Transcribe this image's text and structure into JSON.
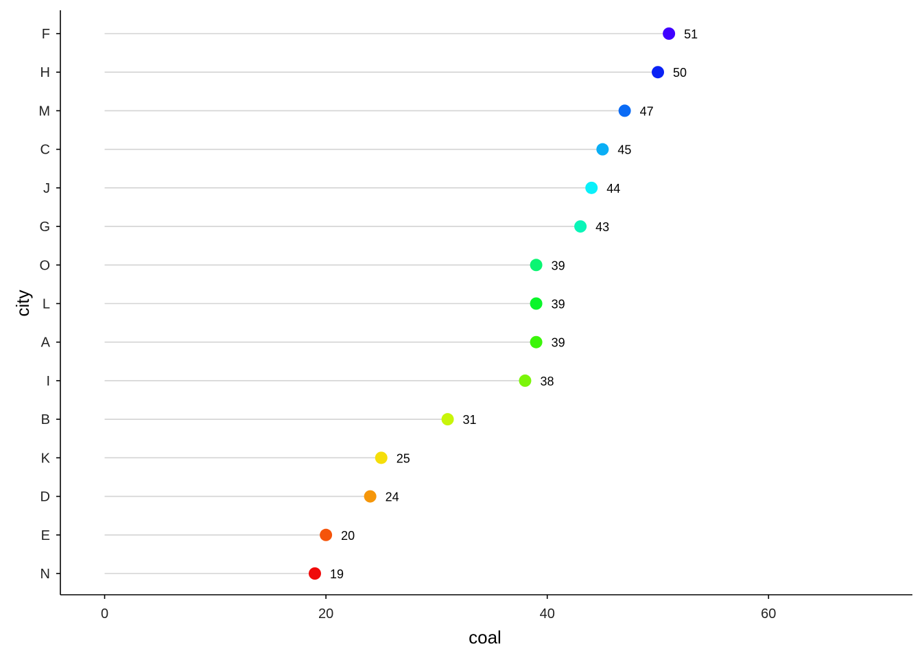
{
  "chart_data": {
    "type": "lollipop",
    "title": "",
    "xlabel": "coal",
    "ylabel": "city",
    "xlim": [
      -4,
      73
    ],
    "xticks": [
      0,
      20,
      40,
      60
    ],
    "grid": false,
    "legend": "none",
    "categories": [
      "F",
      "H",
      "M",
      "C",
      "J",
      "G",
      "O",
      "L",
      "A",
      "I",
      "B",
      "K",
      "D",
      "E",
      "N"
    ],
    "values": [
      51,
      50,
      47,
      45,
      44,
      43,
      39,
      39,
      39,
      38,
      31,
      25,
      24,
      20,
      19
    ],
    "labels": [
      "51",
      "50",
      "47",
      "45",
      "44",
      "43",
      "39",
      "39",
      "39",
      "38",
      "31",
      "25",
      "24",
      "20",
      "19"
    ],
    "point_colors": [
      "#3F00FF",
      "#0A22F5",
      "#0A6BF5",
      "#0AAEF5",
      "#0AF0FA",
      "#0AF5B8",
      "#0AF572",
      "#0AF52A",
      "#3BF50A",
      "#7BF50A",
      "#C8F50A",
      "#F5DE0A",
      "#F5960A",
      "#F5540A",
      "#F00A0A"
    ],
    "segment_color": "#D3D3D3"
  }
}
